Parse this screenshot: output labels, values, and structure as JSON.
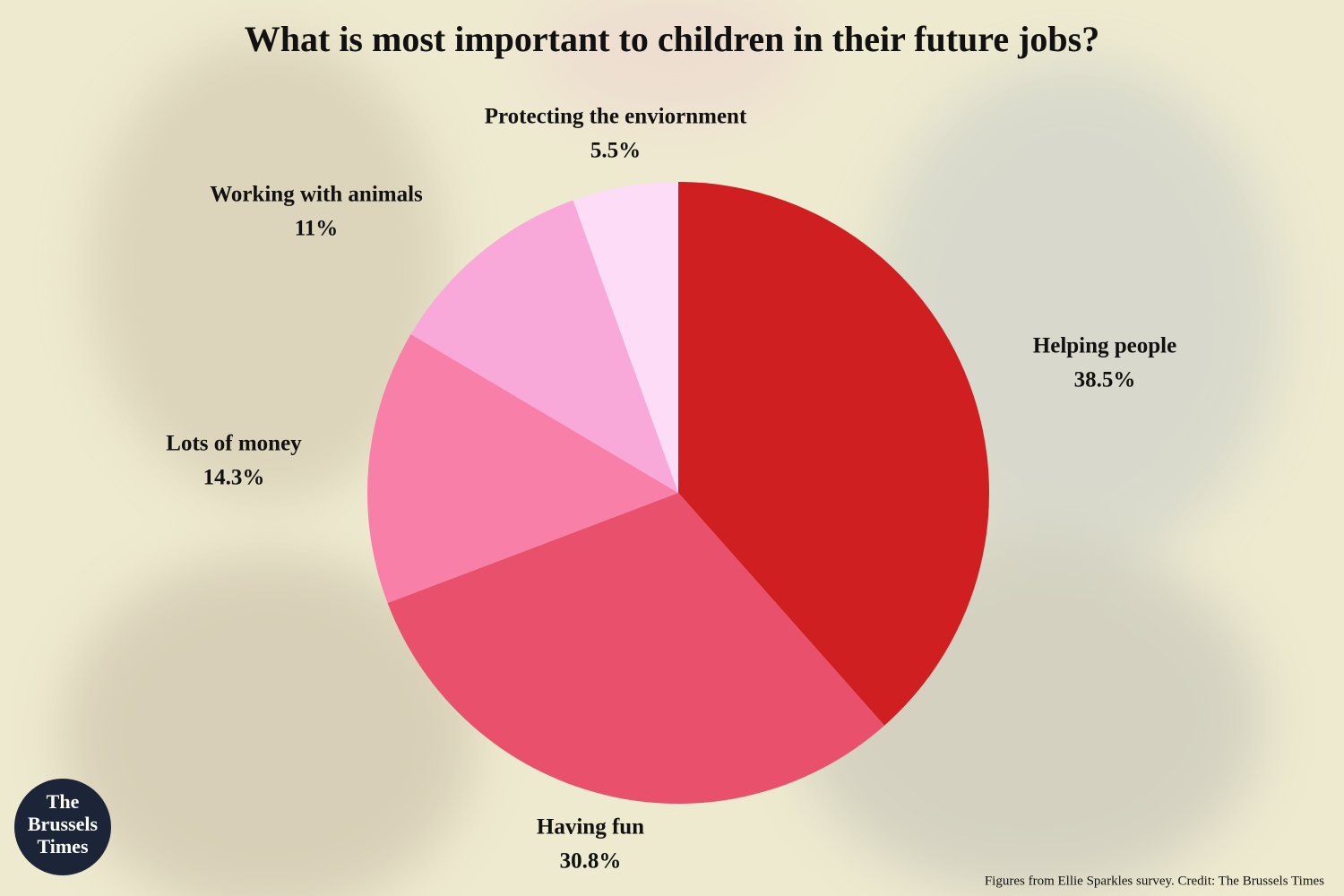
{
  "chart_data": {
    "type": "pie",
    "title": "What is most important to children in their future jobs?",
    "categories": [
      "Helping people",
      "Having fun",
      "Lots of money",
      "Working with animals",
      "Protecting the enviornment"
    ],
    "values": [
      38.5,
      30.8,
      14.3,
      11,
      5.5
    ],
    "value_labels": [
      "38.5%",
      "30.8%",
      "14.3%",
      "11%",
      "5.5%"
    ],
    "colors": [
      "#cf1f20",
      "#e8506b",
      "#f880a8",
      "#f9a9d9",
      "#fddcf7"
    ],
    "credit": "Figures from Ellie Sparkles survey. Credit: The Brussels Times",
    "logo": [
      "The",
      "Brussels",
      "Times"
    ]
  }
}
